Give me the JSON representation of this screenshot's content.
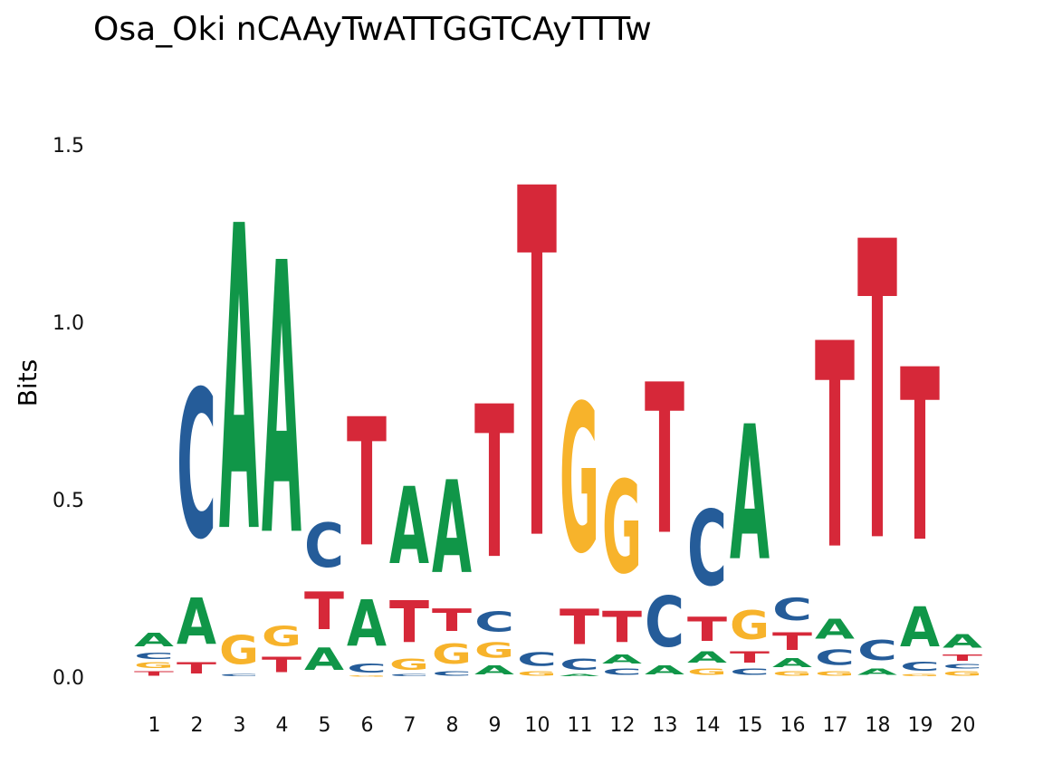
{
  "chart_data": {
    "type": "sequence-logo",
    "title": "Osa_Oki nCAAyTwATTGGTCAyTTTw",
    "ylabel": "Bits",
    "xlabel": "",
    "ylim": [
      0,
      1.65
    ],
    "yticks": [
      "0.0",
      "0.5",
      "1.0",
      "1.5"
    ],
    "ytick_values": [
      0,
      0.5,
      1.0,
      1.5
    ],
    "grid": false,
    "colors": {
      "A": "#109648",
      "C": "#255C99",
      "G": "#F7B32B",
      "T": "#D62839"
    },
    "positions": [
      {
        "label": "1",
        "letters": [
          {
            "base": "T",
            "bits": 0.02
          },
          {
            "base": "G",
            "bits": 0.025
          },
          {
            "base": "C",
            "bits": 0.03
          },
          {
            "base": "A",
            "bits": 0.06
          }
        ]
      },
      {
        "label": "2",
        "letters": [
          {
            "base": "T",
            "bits": 0.05
          },
          {
            "base": "A",
            "bits": 0.21
          },
          {
            "base": "C",
            "bits": 0.67
          }
        ]
      },
      {
        "label": "3",
        "letters": [
          {
            "base": "C",
            "bits": 0.01
          },
          {
            "base": "G",
            "bits": 0.13
          },
          {
            "base": "A",
            "bits": 1.38
          }
        ]
      },
      {
        "label": "4",
        "letters": [
          {
            "base": "T",
            "bits": 0.07
          },
          {
            "base": "G",
            "bits": 0.09
          },
          {
            "base": "A",
            "bits": 1.23
          }
        ]
      },
      {
        "label": "5",
        "letters": [
          {
            "base": "A",
            "bits": 0.1
          },
          {
            "base": "T",
            "bits": 0.17
          },
          {
            "base": "C",
            "bits": 0.2
          }
        ]
      },
      {
        "label": "6",
        "letters": [
          {
            "base": "G",
            "bits": 0.005
          },
          {
            "base": "C",
            "bits": 0.04
          },
          {
            "base": "A",
            "bits": 0.21
          },
          {
            "base": "T",
            "bits": 0.58
          }
        ]
      },
      {
        "label": "7",
        "letters": [
          {
            "base": "C",
            "bits": 0.01
          },
          {
            "base": "G",
            "bits": 0.05
          },
          {
            "base": "T",
            "bits": 0.19
          },
          {
            "base": "A",
            "bits": 0.35
          }
        ]
      },
      {
        "label": "8",
        "letters": [
          {
            "base": "C",
            "bits": 0.02
          },
          {
            "base": "G",
            "bits": 0.09
          },
          {
            "base": "T",
            "bits": 0.1
          },
          {
            "base": "A",
            "bits": 0.42
          }
        ]
      },
      {
        "label": "9",
        "letters": [
          {
            "base": "A",
            "bits": 0.04
          },
          {
            "base": "G",
            "bits": 0.07
          },
          {
            "base": "C",
            "bits": 0.09
          },
          {
            "base": "T",
            "bits": 0.69
          }
        ]
      },
      {
        "label": "10",
        "letters": [
          {
            "base": "G",
            "bits": 0.02
          },
          {
            "base": "C",
            "bits": 0.06
          },
          {
            "base": "T",
            "bits": 1.58
          }
        ]
      },
      {
        "label": "11",
        "letters": [
          {
            "base": "A",
            "bits": 0.01
          },
          {
            "base": "C",
            "bits": 0.05
          },
          {
            "base": "T",
            "bits": 0.16
          },
          {
            "base": "G",
            "bits": 0.67
          }
        ]
      },
      {
        "label": "12",
        "letters": [
          {
            "base": "C",
            "bits": 0.03
          },
          {
            "base": "A",
            "bits": 0.04
          },
          {
            "base": "T",
            "bits": 0.14
          },
          {
            "base": "G",
            "bits": 0.42
          }
        ]
      },
      {
        "label": "13",
        "letters": [
          {
            "base": "A",
            "bits": 0.04
          },
          {
            "base": "C",
            "bits": 0.23
          },
          {
            "base": "T",
            "bits": 0.68
          }
        ]
      },
      {
        "label": "14",
        "letters": [
          {
            "base": "G",
            "bits": 0.03
          },
          {
            "base": "A",
            "bits": 0.05
          },
          {
            "base": "T",
            "bits": 0.11
          },
          {
            "base": "C",
            "bits": 0.34
          }
        ]
      },
      {
        "label": "15",
        "letters": [
          {
            "base": "C",
            "bits": 0.03
          },
          {
            "base": "T",
            "bits": 0.05
          },
          {
            "base": "G",
            "bits": 0.13
          },
          {
            "base": "A",
            "bits": 0.61
          }
        ]
      },
      {
        "label": "16",
        "letters": [
          {
            "base": "G",
            "bits": 0.02
          },
          {
            "base": "A",
            "bits": 0.04
          },
          {
            "base": "T",
            "bits": 0.08
          },
          {
            "base": "C",
            "bits": 0.1
          }
        ]
      },
      {
        "label": "17",
        "letters": [
          {
            "base": "G",
            "bits": 0.02
          },
          {
            "base": "C",
            "bits": 0.07
          },
          {
            "base": "A",
            "bits": 0.09
          },
          {
            "base": "T",
            "bits": 0.93
          }
        ]
      },
      {
        "label": "18",
        "letters": [
          {
            "base": "A",
            "bits": 0.03
          },
          {
            "base": "C",
            "bits": 0.09
          },
          {
            "base": "T",
            "bits": 1.35
          }
        ]
      },
      {
        "label": "19",
        "letters": [
          {
            "base": "G",
            "bits": 0.01
          },
          {
            "base": "C",
            "bits": 0.04
          },
          {
            "base": "A",
            "bits": 0.18
          },
          {
            "base": "T",
            "bits": 0.78
          }
        ]
      },
      {
        "label": "20",
        "letters": [
          {
            "base": "G",
            "bits": 0.02
          },
          {
            "base": "C",
            "bits": 0.02
          },
          {
            "base": "T",
            "bits": 0.03
          },
          {
            "base": "A",
            "bits": 0.06
          }
        ]
      }
    ]
  }
}
